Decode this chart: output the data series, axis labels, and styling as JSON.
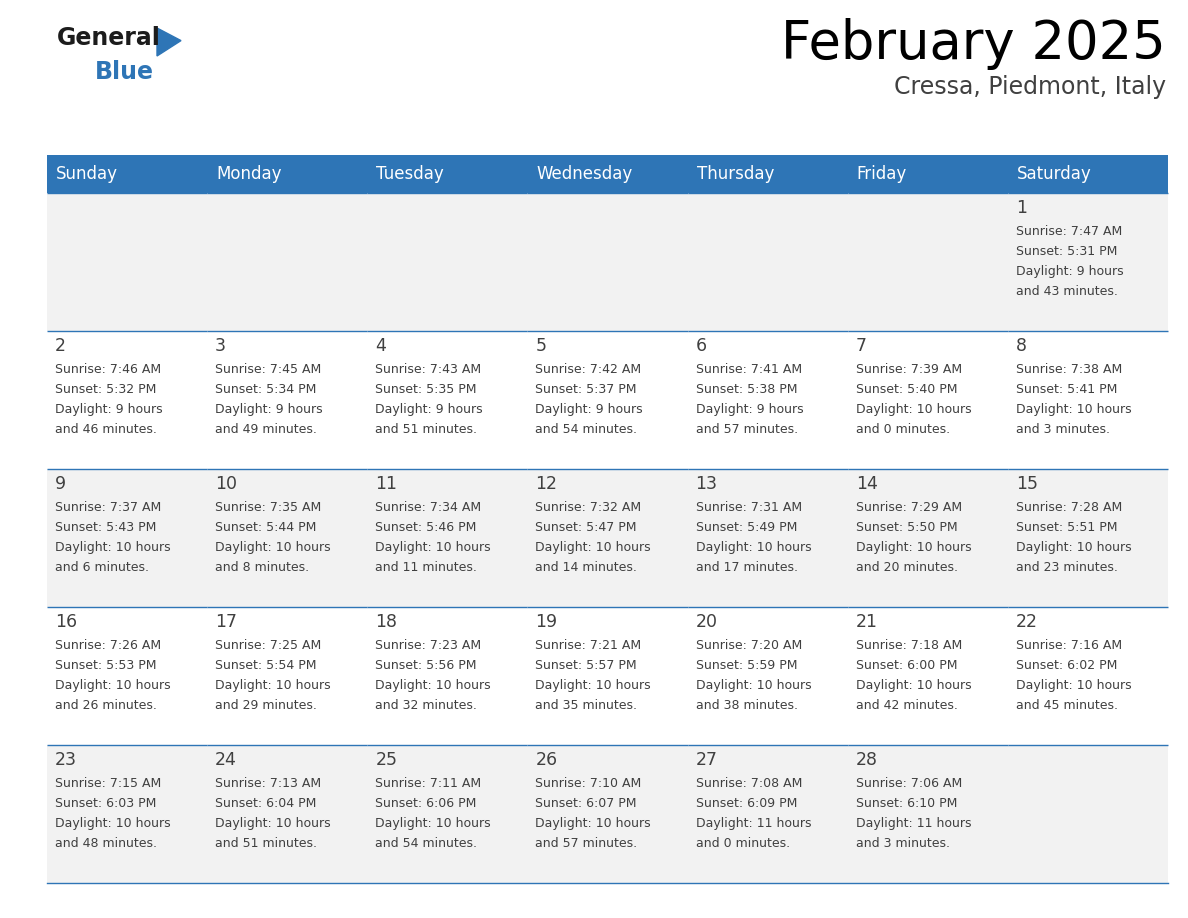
{
  "title": "February 2025",
  "subtitle": "Cressa, Piedmont, Italy",
  "header_color": "#2E75B6",
  "header_text_color": "#FFFFFF",
  "cell_bg_even": "#F2F2F2",
  "cell_bg_odd": "#FFFFFF",
  "border_color": "#2E75B6",
  "days_of_week": [
    "Sunday",
    "Monday",
    "Tuesday",
    "Wednesday",
    "Thursday",
    "Friday",
    "Saturday"
  ],
  "title_color": "#000000",
  "subtitle_color": "#404040",
  "cell_text_color": "#404040",
  "fig_width": 11.88,
  "fig_height": 9.18,
  "calendar": [
    [
      null,
      null,
      null,
      null,
      null,
      null,
      1
    ],
    [
      2,
      3,
      4,
      5,
      6,
      7,
      8
    ],
    [
      9,
      10,
      11,
      12,
      13,
      14,
      15
    ],
    [
      16,
      17,
      18,
      19,
      20,
      21,
      22
    ],
    [
      23,
      24,
      25,
      26,
      27,
      28,
      null
    ]
  ],
  "cell_data": {
    "1": {
      "sunrise": "7:47 AM",
      "sunset": "5:31 PM",
      "daylight_hours": 9,
      "daylight_minutes": 43
    },
    "2": {
      "sunrise": "7:46 AM",
      "sunset": "5:32 PM",
      "daylight_hours": 9,
      "daylight_minutes": 46
    },
    "3": {
      "sunrise": "7:45 AM",
      "sunset": "5:34 PM",
      "daylight_hours": 9,
      "daylight_minutes": 49
    },
    "4": {
      "sunrise": "7:43 AM",
      "sunset": "5:35 PM",
      "daylight_hours": 9,
      "daylight_minutes": 51
    },
    "5": {
      "sunrise": "7:42 AM",
      "sunset": "5:37 PM",
      "daylight_hours": 9,
      "daylight_minutes": 54
    },
    "6": {
      "sunrise": "7:41 AM",
      "sunset": "5:38 PM",
      "daylight_hours": 9,
      "daylight_minutes": 57
    },
    "7": {
      "sunrise": "7:39 AM",
      "sunset": "5:40 PM",
      "daylight_hours": 10,
      "daylight_minutes": 0
    },
    "8": {
      "sunrise": "7:38 AM",
      "sunset": "5:41 PM",
      "daylight_hours": 10,
      "daylight_minutes": 3
    },
    "9": {
      "sunrise": "7:37 AM",
      "sunset": "5:43 PM",
      "daylight_hours": 10,
      "daylight_minutes": 6
    },
    "10": {
      "sunrise": "7:35 AM",
      "sunset": "5:44 PM",
      "daylight_hours": 10,
      "daylight_minutes": 8
    },
    "11": {
      "sunrise": "7:34 AM",
      "sunset": "5:46 PM",
      "daylight_hours": 10,
      "daylight_minutes": 11
    },
    "12": {
      "sunrise": "7:32 AM",
      "sunset": "5:47 PM",
      "daylight_hours": 10,
      "daylight_minutes": 14
    },
    "13": {
      "sunrise": "7:31 AM",
      "sunset": "5:49 PM",
      "daylight_hours": 10,
      "daylight_minutes": 17
    },
    "14": {
      "sunrise": "7:29 AM",
      "sunset": "5:50 PM",
      "daylight_hours": 10,
      "daylight_minutes": 20
    },
    "15": {
      "sunrise": "7:28 AM",
      "sunset": "5:51 PM",
      "daylight_hours": 10,
      "daylight_minutes": 23
    },
    "16": {
      "sunrise": "7:26 AM",
      "sunset": "5:53 PM",
      "daylight_hours": 10,
      "daylight_minutes": 26
    },
    "17": {
      "sunrise": "7:25 AM",
      "sunset": "5:54 PM",
      "daylight_hours": 10,
      "daylight_minutes": 29
    },
    "18": {
      "sunrise": "7:23 AM",
      "sunset": "5:56 PM",
      "daylight_hours": 10,
      "daylight_minutes": 32
    },
    "19": {
      "sunrise": "7:21 AM",
      "sunset": "5:57 PM",
      "daylight_hours": 10,
      "daylight_minutes": 35
    },
    "20": {
      "sunrise": "7:20 AM",
      "sunset": "5:59 PM",
      "daylight_hours": 10,
      "daylight_minutes": 38
    },
    "21": {
      "sunrise": "7:18 AM",
      "sunset": "6:00 PM",
      "daylight_hours": 10,
      "daylight_minutes": 42
    },
    "22": {
      "sunrise": "7:16 AM",
      "sunset": "6:02 PM",
      "daylight_hours": 10,
      "daylight_minutes": 45
    },
    "23": {
      "sunrise": "7:15 AM",
      "sunset": "6:03 PM",
      "daylight_hours": 10,
      "daylight_minutes": 48
    },
    "24": {
      "sunrise": "7:13 AM",
      "sunset": "6:04 PM",
      "daylight_hours": 10,
      "daylight_minutes": 51
    },
    "25": {
      "sunrise": "7:11 AM",
      "sunset": "6:06 PM",
      "daylight_hours": 10,
      "daylight_minutes": 54
    },
    "26": {
      "sunrise": "7:10 AM",
      "sunset": "6:07 PM",
      "daylight_hours": 10,
      "daylight_minutes": 57
    },
    "27": {
      "sunrise": "7:08 AM",
      "sunset": "6:09 PM",
      "daylight_hours": 11,
      "daylight_minutes": 0
    },
    "28": {
      "sunrise": "7:06 AM",
      "sunset": "6:10 PM",
      "daylight_hours": 11,
      "daylight_minutes": 3
    }
  }
}
